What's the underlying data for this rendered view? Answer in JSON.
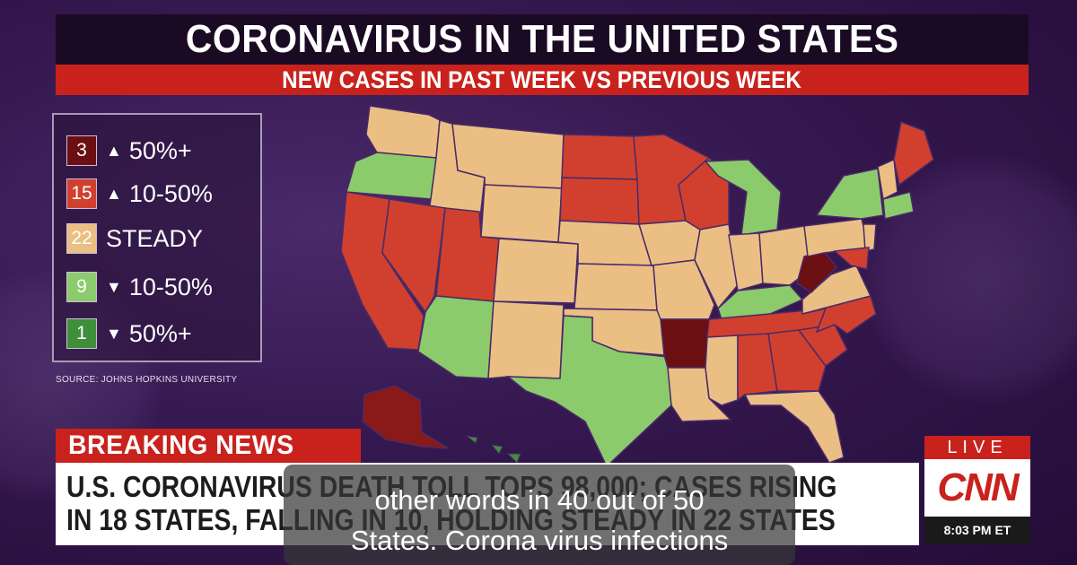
{
  "header": {
    "title": "CORONAVIRUS IN THE UNITED STATES",
    "subtitle": "NEW CASES IN PAST WEEK VS PREVIOUS WEEK"
  },
  "legend": [
    {
      "count": "3",
      "arrow": "▲",
      "label": "50%+",
      "color": "#6b0f12"
    },
    {
      "count": "15",
      "arrow": "▲",
      "label": "10-50%",
      "color": "#d1402e"
    },
    {
      "count": "22",
      "arrow": "",
      "label": "STEADY",
      "color": "#ebbf84"
    },
    {
      "count": "9",
      "arrow": "▼",
      "label": "10-50%",
      "color": "#8ccb6b"
    },
    {
      "count": "1",
      "arrow": "▼",
      "label": "50%+",
      "color": "#3f8f3a"
    }
  ],
  "source": "SOURCE: JOHNS HOPKINS UNIVERSITY",
  "ticker": {
    "breaking": "BREAKING NEWS",
    "line1": "U.S. CORONAVIRUS DEATH TOLL TOPS 98,000; CASES RISING",
    "line2": "IN 18 STATES, FALLING IN 10, HOLDING STEADY IN 22 STATES"
  },
  "network": {
    "live": "LIVE",
    "logo": "CNN",
    "time": "8:03 PM ET"
  },
  "captions": {
    "line1": "other words in 40 out of 50",
    "line2": "States. Corona virus infections"
  },
  "colors": {
    "up_50": "#6b0f12",
    "up_10_50": "#d1402e",
    "steady": "#ebbf84",
    "down_10_50": "#8ccb6b",
    "down_50": "#3f8f3a"
  }
}
